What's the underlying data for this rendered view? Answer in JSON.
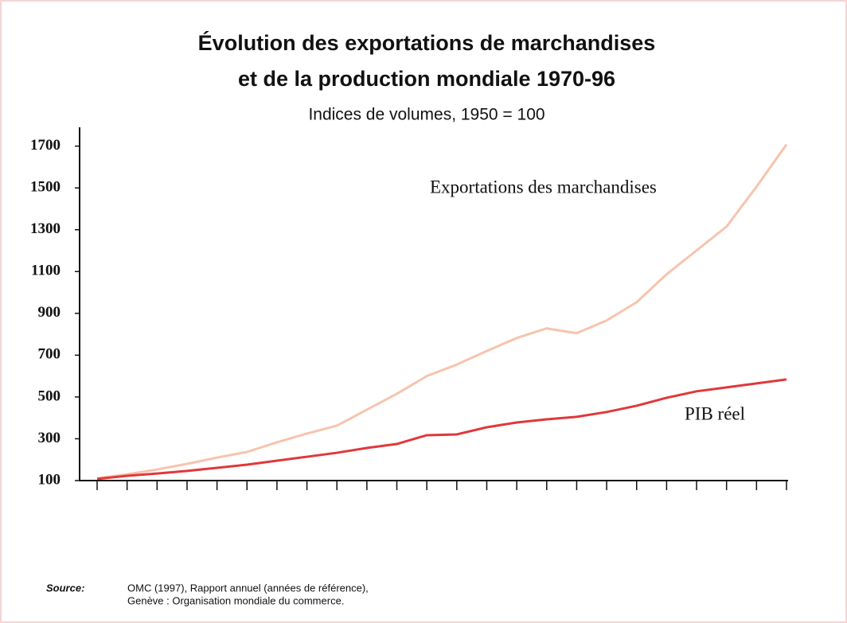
{
  "chart_data": {
    "type": "line",
    "title": [
      "Évolution des exportations de marchandises",
      "et de la production mondiale 1970-96"
    ],
    "subtitle": "Indices de volumes, 1950 = 100",
    "categories": [
      null,
      null,
      null,
      null,
      null,
      null,
      null,
      null,
      null,
      null,
      null,
      null,
      null,
      null,
      null,
      null,
      null,
      null,
      null,
      null,
      null,
      null,
      null,
      null
    ],
    "series": [
      {
        "name": "Exportations des marchandises",
        "color": "#f7c3ad",
        "values": [
          111,
          130,
          153,
          180,
          210,
          237,
          283,
          325,
          363,
          439,
          515,
          600,
          655,
          720,
          782,
          828,
          805,
          866,
          953,
          1087,
          1201,
          1315,
          1506,
          1708
        ]
      },
      {
        "name": "PIB réel",
        "color": "#e0383b",
        "values": [
          108,
          123,
          134,
          146,
          161,
          176,
          195,
          214,
          233,
          256,
          275,
          317,
          321,
          355,
          378,
          393,
          405,
          428,
          458,
          496,
          527,
          546,
          565,
          584
        ]
      }
    ],
    "ylim": [
      100,
      1790
    ],
    "yticks": [
      100,
      300,
      500,
      700,
      900,
      1100,
      1300,
      1500,
      1700
    ],
    "source": {
      "label": "Source:",
      "text": [
        "OMC (1997), Rapport annuel (années de référence),",
        "Genève : Organisation mondiale du commerce."
      ]
    }
  }
}
